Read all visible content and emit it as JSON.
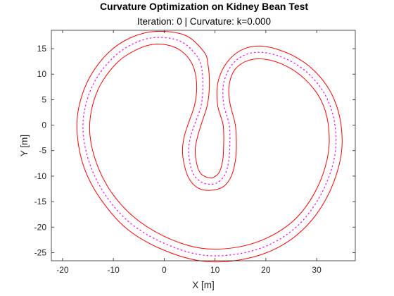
{
  "chart_data": {
    "type": "line",
    "title": "Curvature Optimization on Kidney Bean Test",
    "subtitle": "Iteration: 0 | Curvature: k=0.000",
    "xlabel": "X [m]",
    "ylabel": "Y [m]",
    "xlim": [
      -22.2,
      37.6
    ],
    "ylim": [
      -26.6,
      18.6
    ],
    "xticks": [
      -20,
      -10,
      0,
      10,
      20,
      30
    ],
    "yticks": [
      -25,
      -20,
      -15,
      -10,
      -5,
      0,
      5,
      10,
      15
    ],
    "grid": false,
    "colors": {
      "boundary": "#ff0000",
      "centerline": "#ff00ff",
      "axes": "#262626"
    },
    "series": [
      {
        "style": "solid",
        "color": "#ff0000",
        "points": [
          [
            4.5,
            13.5
          ],
          [
            2.0,
            15.3
          ],
          [
            -1.5,
            15.9
          ],
          [
            -5.0,
            15.0
          ],
          [
            -9.0,
            12.5
          ],
          [
            -12.5,
            8.0
          ],
          [
            -14.3,
            3.0
          ],
          [
            -14.6,
            -2.0
          ],
          [
            -13.3,
            -7.5
          ],
          [
            -10.5,
            -13.0
          ],
          [
            -6.0,
            -18.0
          ],
          [
            0.0,
            -21.8
          ],
          [
            7.0,
            -24.1
          ],
          [
            14.0,
            -24.0
          ],
          [
            20.5,
            -22.0
          ],
          [
            26.0,
            -18.2
          ],
          [
            30.0,
            -12.5
          ],
          [
            32.2,
            -6.0
          ],
          [
            32.3,
            0.0
          ],
          [
            30.8,
            5.0
          ],
          [
            27.7,
            9.0
          ],
          [
            24.0,
            11.6
          ],
          [
            20.0,
            12.9
          ],
          [
            16.6,
            12.7
          ],
          [
            14.0,
            11.0
          ],
          [
            12.8,
            8.0
          ],
          [
            12.9,
            4.5
          ],
          [
            14.0,
            0.0
          ],
          [
            14.2,
            -4.0
          ],
          [
            14.0,
            -7.0
          ],
          [
            13.2,
            -10.0
          ],
          [
            11.6,
            -12.1
          ],
          [
            9.0,
            -12.8
          ],
          [
            6.6,
            -12.3
          ],
          [
            4.9,
            -10.5
          ],
          [
            4.0,
            -8.0
          ],
          [
            3.6,
            -5.0
          ],
          [
            4.0,
            -2.0
          ],
          [
            5.0,
            1.0
          ],
          [
            6.0,
            4.0
          ],
          [
            6.4,
            7.5
          ],
          [
            5.9,
            11.0
          ],
          [
            4.5,
            13.5
          ]
        ]
      },
      {
        "style": "solid",
        "color": "#ff0000",
        "points": [
          [
            7.8,
            14.4
          ],
          [
            4.2,
            17.6
          ],
          [
            -1.5,
            18.4
          ],
          [
            -6.5,
            17.2
          ],
          [
            -11.0,
            14.2
          ],
          [
            -14.7,
            9.3
          ],
          [
            -16.8,
            3.5
          ],
          [
            -17.1,
            -2.0
          ],
          [
            -15.7,
            -8.5
          ],
          [
            -12.5,
            -14.5
          ],
          [
            -7.5,
            -20.2
          ],
          [
            -0.8,
            -24.2
          ],
          [
            7.0,
            -26.6
          ],
          [
            14.5,
            -26.5
          ],
          [
            21.8,
            -24.3
          ],
          [
            27.8,
            -20.0
          ],
          [
            32.2,
            -13.8
          ],
          [
            34.7,
            -6.5
          ],
          [
            34.8,
            0.0
          ],
          [
            33.0,
            6.0
          ],
          [
            29.6,
            10.6
          ],
          [
            25.2,
            13.7
          ],
          [
            20.0,
            15.4
          ],
          [
            15.8,
            15.0
          ],
          [
            12.5,
            12.5
          ],
          [
            10.6,
            8.5
          ],
          [
            10.5,
            4.0
          ],
          [
            11.6,
            0.0
          ],
          [
            11.7,
            -4.0
          ],
          [
            11.5,
            -7.0
          ],
          [
            10.8,
            -9.3
          ],
          [
            9.6,
            -10.3
          ],
          [
            9.0,
            -10.3
          ],
          [
            8.3,
            -10.2
          ],
          [
            7.2,
            -9.5
          ],
          [
            6.5,
            -8.0
          ],
          [
            6.1,
            -5.0
          ],
          [
            6.5,
            -2.5
          ],
          [
            7.4,
            0.5
          ],
          [
            8.5,
            4.0
          ],
          [
            8.9,
            8.0
          ],
          [
            8.6,
            12.0
          ],
          [
            7.8,
            14.4
          ]
        ]
      },
      {
        "style": "dotted",
        "color": "#ff00ff",
        "points": [
          [
            6.1,
            14.0
          ],
          [
            3.1,
            16.5
          ],
          [
            -1.5,
            17.2
          ],
          [
            -5.8,
            16.1
          ],
          [
            -10.0,
            13.3
          ],
          [
            -13.6,
            8.7
          ],
          [
            -15.6,
            3.3
          ],
          [
            -15.9,
            -2.0
          ],
          [
            -14.5,
            -8.0
          ],
          [
            -11.5,
            -13.8
          ],
          [
            -6.8,
            -19.1
          ],
          [
            -0.4,
            -23.0
          ],
          [
            7.0,
            -25.4
          ],
          [
            14.3,
            -25.3
          ],
          [
            21.2,
            -23.2
          ],
          [
            26.9,
            -19.1
          ],
          [
            31.1,
            -13.1
          ],
          [
            33.5,
            -6.3
          ],
          [
            33.6,
            0.0
          ],
          [
            31.9,
            5.5
          ],
          [
            28.7,
            9.8
          ],
          [
            24.6,
            12.7
          ],
          [
            20.0,
            14.2
          ],
          [
            16.2,
            13.9
          ],
          [
            13.3,
            11.8
          ],
          [
            11.7,
            8.2
          ],
          [
            11.7,
            4.2
          ],
          [
            12.8,
            0.0
          ],
          [
            12.9,
            -4.0
          ],
          [
            12.7,
            -7.0
          ],
          [
            12.0,
            -9.6
          ],
          [
            10.6,
            -11.2
          ],
          [
            9.0,
            -11.6
          ],
          [
            7.4,
            -11.2
          ],
          [
            6.0,
            -10.0
          ],
          [
            5.2,
            -8.0
          ],
          [
            4.8,
            -5.0
          ],
          [
            5.2,
            -2.2
          ],
          [
            6.2,
            0.7
          ],
          [
            7.3,
            4.0
          ],
          [
            7.6,
            7.8
          ],
          [
            7.3,
            11.5
          ],
          [
            6.1,
            14.0
          ]
        ]
      }
    ]
  }
}
